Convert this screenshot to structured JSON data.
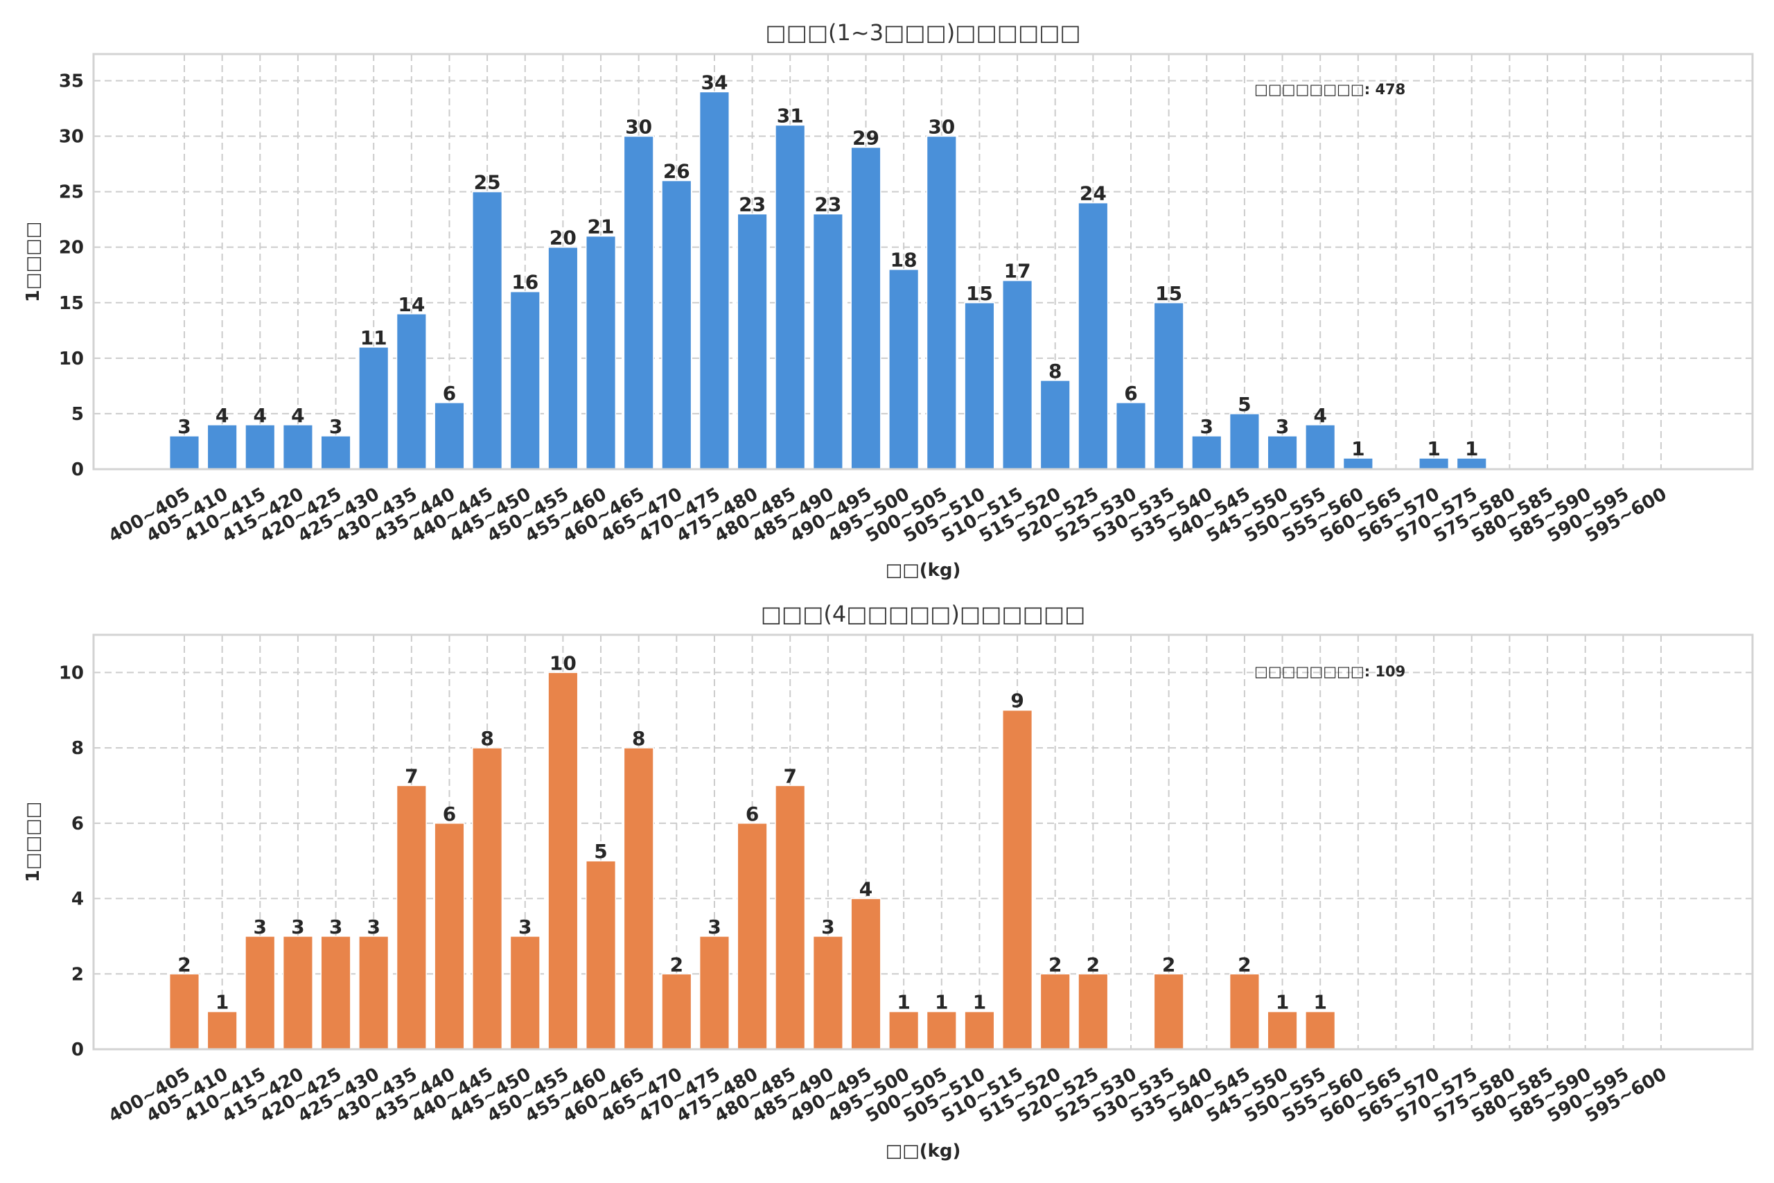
{
  "chart_data": [
    {
      "type": "bar",
      "title": "□□□(1~3□□□)□□□□□□",
      "xlabel": "□□(kg)",
      "ylabel": "1□□□□",
      "annotation": "□□□□□□□□: 478",
      "annotation_placement": "top-right",
      "color": "#4a90d9",
      "grid": true,
      "ylim": [
        0,
        37.4
      ],
      "yticks": [
        0,
        5,
        10,
        15,
        20,
        25,
        30,
        35
      ],
      "categories": [
        "400~405",
        "405~410",
        "410~415",
        "415~420",
        "420~425",
        "425~430",
        "430~435",
        "435~440",
        "440~445",
        "445~450",
        "450~455",
        "455~460",
        "460~465",
        "465~470",
        "470~475",
        "475~480",
        "480~485",
        "485~490",
        "490~495",
        "495~500",
        "500~505",
        "505~510",
        "510~515",
        "515~520",
        "520~525",
        "525~530",
        "530~535",
        "535~540",
        "540~545",
        "545~550",
        "550~555",
        "555~560",
        "560~565",
        "565~570",
        "570~575",
        "575~580",
        "580~585",
        "585~590",
        "590~595",
        "595~600"
      ],
      "values": [
        3,
        4,
        4,
        4,
        3,
        11,
        14,
        6,
        25,
        16,
        20,
        21,
        30,
        26,
        34,
        23,
        31,
        23,
        29,
        18,
        30,
        15,
        17,
        8,
        24,
        6,
        15,
        3,
        5,
        3,
        4,
        1,
        0,
        1,
        1,
        0,
        0,
        0,
        0,
        0
      ]
    },
    {
      "type": "bar",
      "title": "□□□(4□□□□□)□□□□□□",
      "xlabel": "□□(kg)",
      "ylabel": "1□□□□",
      "annotation": "□□□□□□□□: 109",
      "annotation_placement": "top-right",
      "color": "#e8844a",
      "grid": true,
      "ylim": [
        0,
        11
      ],
      "yticks": [
        0,
        2,
        4,
        6,
        8,
        10
      ],
      "categories": [
        "400~405",
        "405~410",
        "410~415",
        "415~420",
        "420~425",
        "425~430",
        "430~435",
        "435~440",
        "440~445",
        "445~450",
        "450~455",
        "455~460",
        "460~465",
        "465~470",
        "470~475",
        "475~480",
        "480~485",
        "485~490",
        "490~495",
        "495~500",
        "500~505",
        "505~510",
        "510~515",
        "515~520",
        "520~525",
        "525~530",
        "530~535",
        "535~540",
        "540~545",
        "545~550",
        "550~555",
        "555~560",
        "560~565",
        "565~570",
        "570~575",
        "575~580",
        "580~585",
        "585~590",
        "590~595",
        "595~600"
      ],
      "values": [
        2,
        1,
        3,
        3,
        3,
        3,
        7,
        6,
        8,
        3,
        10,
        5,
        8,
        2,
        3,
        6,
        7,
        3,
        4,
        1,
        1,
        1,
        9,
        2,
        2,
        0,
        2,
        0,
        2,
        1,
        1,
        0,
        0,
        0,
        0,
        0,
        0,
        0,
        0,
        0
      ]
    }
  ]
}
